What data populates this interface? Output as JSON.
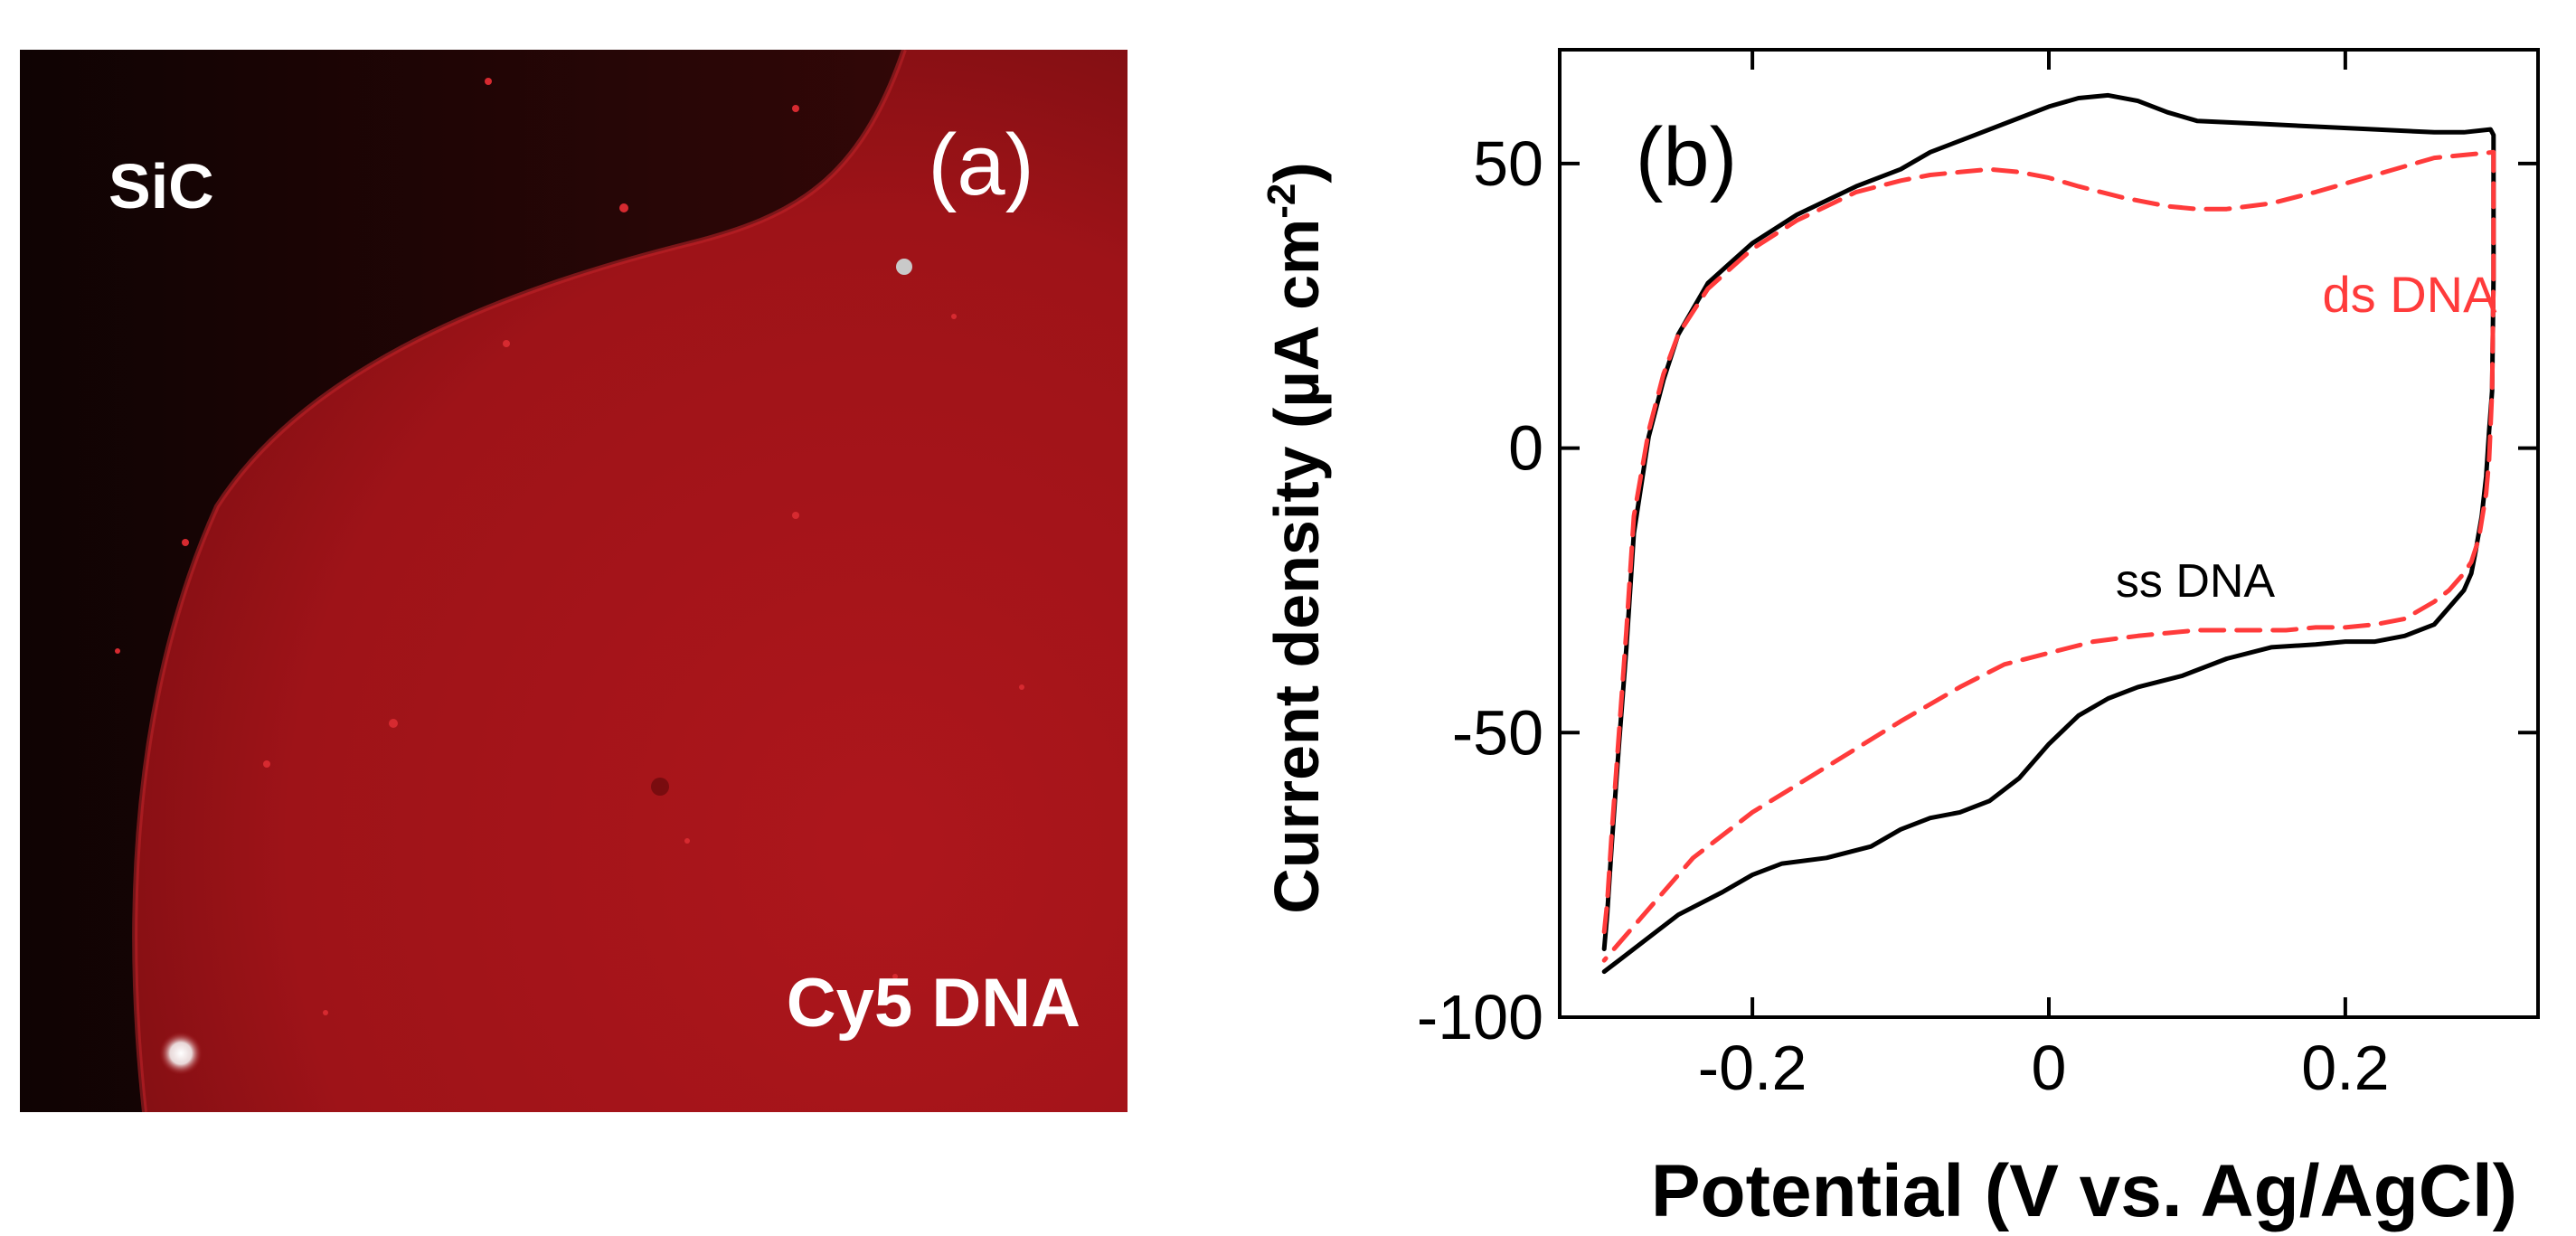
{
  "panel_a": {
    "label": "(a)",
    "region_top_label": "SiC",
    "region_bottom_label": "Cy5 DNA",
    "colors": {
      "background": "#140404",
      "dna_region": "#a8141a",
      "text": "#ffffff"
    }
  },
  "chart_data": {
    "type": "line",
    "panel_label": "(b)",
    "title": "",
    "xlabel": "Potential (V vs. Ag/AgCl)",
    "ylabel_main": "Current density (µA cm",
    "ylabel_superscript": "-2",
    "ylabel_close": ")",
    "xlim": [
      -0.33,
      0.33
    ],
    "ylim": [
      -100,
      70
    ],
    "x_ticks": [
      -0.2,
      0,
      0.2
    ],
    "x_tick_labels": [
      "-0.2",
      "0",
      "0.2"
    ],
    "y_ticks": [
      -100,
      -50,
      0,
      50
    ],
    "y_tick_labels": [
      "-100",
      "-50",
      "0",
      "50"
    ],
    "grid": false,
    "series": [
      {
        "name": "ss DNA",
        "color": "#000000",
        "style": "solid",
        "x": [
          -0.3,
          -0.298,
          -0.295,
          -0.29,
          -0.285,
          -0.28,
          -0.27,
          -0.26,
          -0.25,
          -0.23,
          -0.2,
          -0.17,
          -0.13,
          -0.1,
          -0.08,
          -0.05,
          -0.02,
          0.0,
          0.02,
          0.04,
          0.06,
          0.08,
          0.1,
          0.14,
          0.18,
          0.22,
          0.26,
          0.28,
          0.298,
          0.3,
          0.3,
          0.299,
          0.297,
          0.295,
          0.292,
          0.288,
          0.285,
          0.28,
          0.27,
          0.26,
          0.24,
          0.22,
          0.2,
          0.18,
          0.15,
          0.12,
          0.09,
          0.06,
          0.04,
          0.02,
          0.0,
          -0.02,
          -0.04,
          -0.06,
          -0.08,
          -0.1,
          -0.12,
          -0.15,
          -0.18,
          -0.2,
          -0.22,
          -0.25,
          -0.27,
          -0.28,
          -0.29,
          -0.3
        ],
        "y": [
          -88,
          -82,
          -70,
          -52,
          -35,
          -15,
          2,
          12,
          20,
          29,
          36,
          41,
          46,
          49,
          52,
          55,
          58,
          60,
          61.5,
          62,
          61,
          59,
          57.5,
          57,
          56.5,
          56,
          55.5,
          55.5,
          56,
          55,
          30,
          10,
          3,
          -5,
          -12,
          -18,
          -22,
          -25,
          -28,
          -31,
          -33,
          -34,
          -34,
          -34.5,
          -35,
          -37,
          -40,
          -42,
          -44,
          -47,
          -52,
          -58,
          -62,
          -64,
          -65,
          -67,
          -70,
          -72,
          -73,
          -75,
          -78,
          -82,
          -86,
          -88,
          -90,
          -92
        ]
      },
      {
        "name": "ds DNA",
        "color": "#ff3b3b",
        "style": "dashed",
        "x": [
          -0.3,
          -0.298,
          -0.295,
          -0.29,
          -0.285,
          -0.28,
          -0.27,
          -0.26,
          -0.25,
          -0.23,
          -0.2,
          -0.17,
          -0.13,
          -0.1,
          -0.08,
          -0.06,
          -0.04,
          -0.02,
          0.0,
          0.02,
          0.05,
          0.08,
          0.1,
          0.12,
          0.15,
          0.18,
          0.22,
          0.26,
          0.3,
          0.3,
          0.299,
          0.297,
          0.295,
          0.29,
          0.285,
          0.28,
          0.27,
          0.26,
          0.24,
          0.22,
          0.2,
          0.18,
          0.16,
          0.14,
          0.12,
          0.1,
          0.08,
          0.06,
          0.03,
          0.0,
          -0.03,
          -0.06,
          -0.1,
          -0.15,
          -0.2,
          -0.24,
          -0.26,
          -0.28,
          -0.29,
          -0.3
        ],
        "y": [
          -85,
          -80,
          -68,
          -50,
          -32,
          -12,
          3,
          13,
          20,
          28,
          35,
          40,
          45,
          47,
          48,
          48.5,
          49,
          48.5,
          47.5,
          46,
          44,
          42.5,
          42,
          42,
          43,
          45,
          48,
          51,
          52,
          30,
          10,
          -2,
          -8,
          -16,
          -20,
          -22,
          -25,
          -27,
          -30,
          -31,
          -31.5,
          -31.5,
          -32,
          -32,
          -32,
          -32,
          -32.5,
          -33,
          -34,
          -36,
          -38,
          -42,
          -48,
          -56,
          -64,
          -72,
          -78,
          -84,
          -87,
          -90
        ]
      }
    ],
    "annotations": [
      {
        "text": "ds DNA",
        "color": "#ff3b3b"
      },
      {
        "text": "ss DNA",
        "color": "#000000"
      }
    ]
  }
}
